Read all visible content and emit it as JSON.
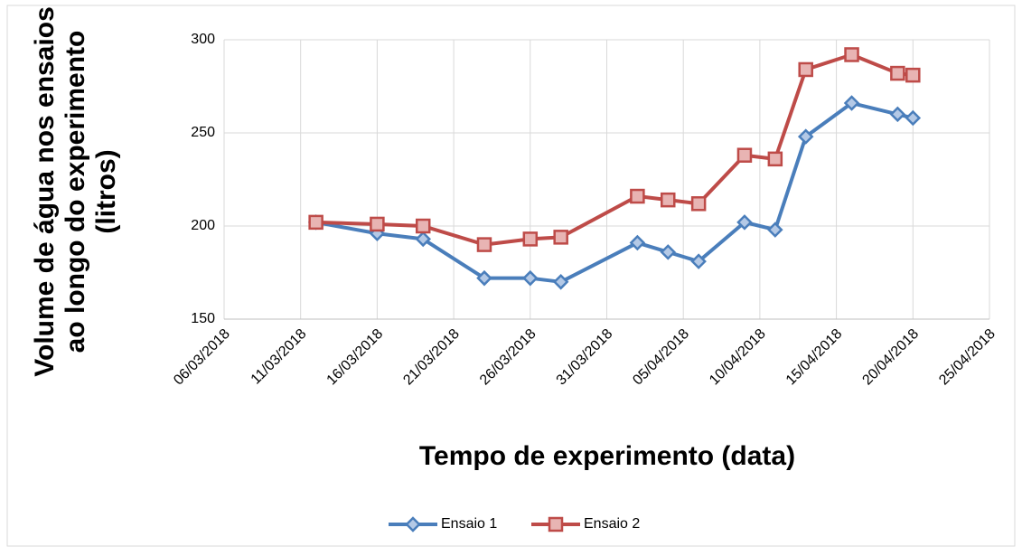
{
  "chart_data": {
    "type": "line",
    "xlabel": "Tempo de experimento (data)",
    "ylabel": [
      "Volume de água nos ensaios",
      "ao longo do experimento",
      "(litros)"
    ],
    "x": [
      "2018-03-12",
      "2018-03-16",
      "2018-03-19",
      "2018-03-23",
      "2018-03-26",
      "2018-03-28",
      "2018-04-02",
      "2018-04-04",
      "2018-04-06",
      "2018-04-09",
      "2018-04-11",
      "2018-04-13",
      "2018-04-16",
      "2018-04-19",
      "2018-04-20"
    ],
    "series": [
      {
        "name": "Ensaio 1",
        "color": "#4a7ebb",
        "marker": "diamond",
        "values": [
          202,
          196,
          193,
          172,
          172,
          170,
          191,
          186,
          181,
          202,
          198,
          248,
          266,
          260,
          258
        ]
      },
      {
        "name": "Ensaio 2",
        "color": "#be4b48",
        "marker": "square",
        "values": [
          202,
          201,
          200,
          190,
          193,
          194,
          216,
          214,
          212,
          238,
          236,
          284,
          292,
          282,
          281
        ]
      }
    ],
    "xlim": [
      "2018-03-06",
      "2018-04-25"
    ],
    "xticks": [
      {
        "value": "2018-03-06",
        "label": "06/03/2018"
      },
      {
        "value": "2018-03-11",
        "label": "11/03/2018"
      },
      {
        "value": "2018-03-16",
        "label": "16/03/2018"
      },
      {
        "value": "2018-03-21",
        "label": "21/03/2018"
      },
      {
        "value": "2018-03-26",
        "label": "26/03/2018"
      },
      {
        "value": "2018-03-31",
        "label": "31/03/2018"
      },
      {
        "value": "2018-04-05",
        "label": "05/04/2018"
      },
      {
        "value": "2018-04-10",
        "label": "10/04/2018"
      },
      {
        "value": "2018-04-15",
        "label": "15/04/2018"
      },
      {
        "value": "2018-04-20",
        "label": "20/04/2018"
      },
      {
        "value": "2018-04-25",
        "label": "25/04/2018"
      }
    ],
    "ylim": [
      150,
      300
    ],
    "yticks": [
      150,
      200,
      250,
      300
    ],
    "grid": true,
    "legend": "bottom"
  }
}
